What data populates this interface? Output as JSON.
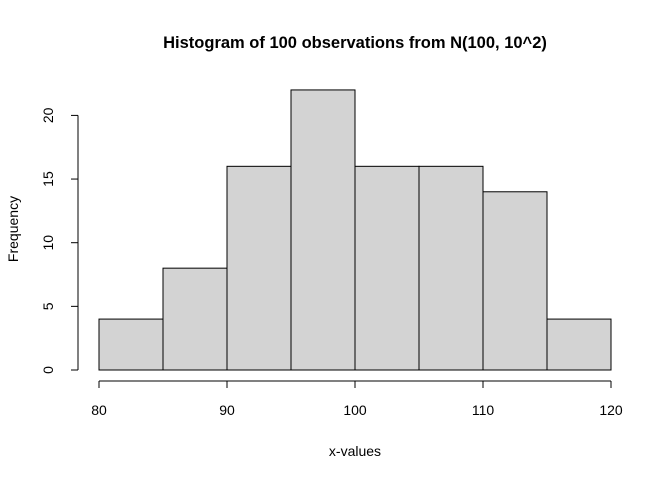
{
  "chart_data": {
    "type": "bar",
    "subtype": "histogram",
    "title": "Histogram of 100 observations from N(100, 10^2)",
    "xlabel": "x-values",
    "ylabel": "Frequency",
    "bins": [
      {
        "from": 80,
        "to": 85,
        "count": 4
      },
      {
        "from": 85,
        "to": 90,
        "count": 8
      },
      {
        "from": 90,
        "to": 95,
        "count": 16
      },
      {
        "from": 95,
        "to": 100,
        "count": 22
      },
      {
        "from": 100,
        "to": 105,
        "count": 16
      },
      {
        "from": 105,
        "to": 110,
        "count": 16
      },
      {
        "from": 110,
        "to": 115,
        "count": 14
      },
      {
        "from": 115,
        "to": 120,
        "count": 4
      }
    ],
    "xlim": [
      80,
      120
    ],
    "ylim": [
      0,
      22
    ],
    "x_ticks": [
      "80",
      "90",
      "100",
      "110",
      "120"
    ],
    "y_ticks": [
      "0",
      "5",
      "10",
      "15",
      "20"
    ],
    "grid": false,
    "colors": {
      "bar_fill": "#d3d3d3",
      "bar_stroke": "#000000"
    }
  }
}
